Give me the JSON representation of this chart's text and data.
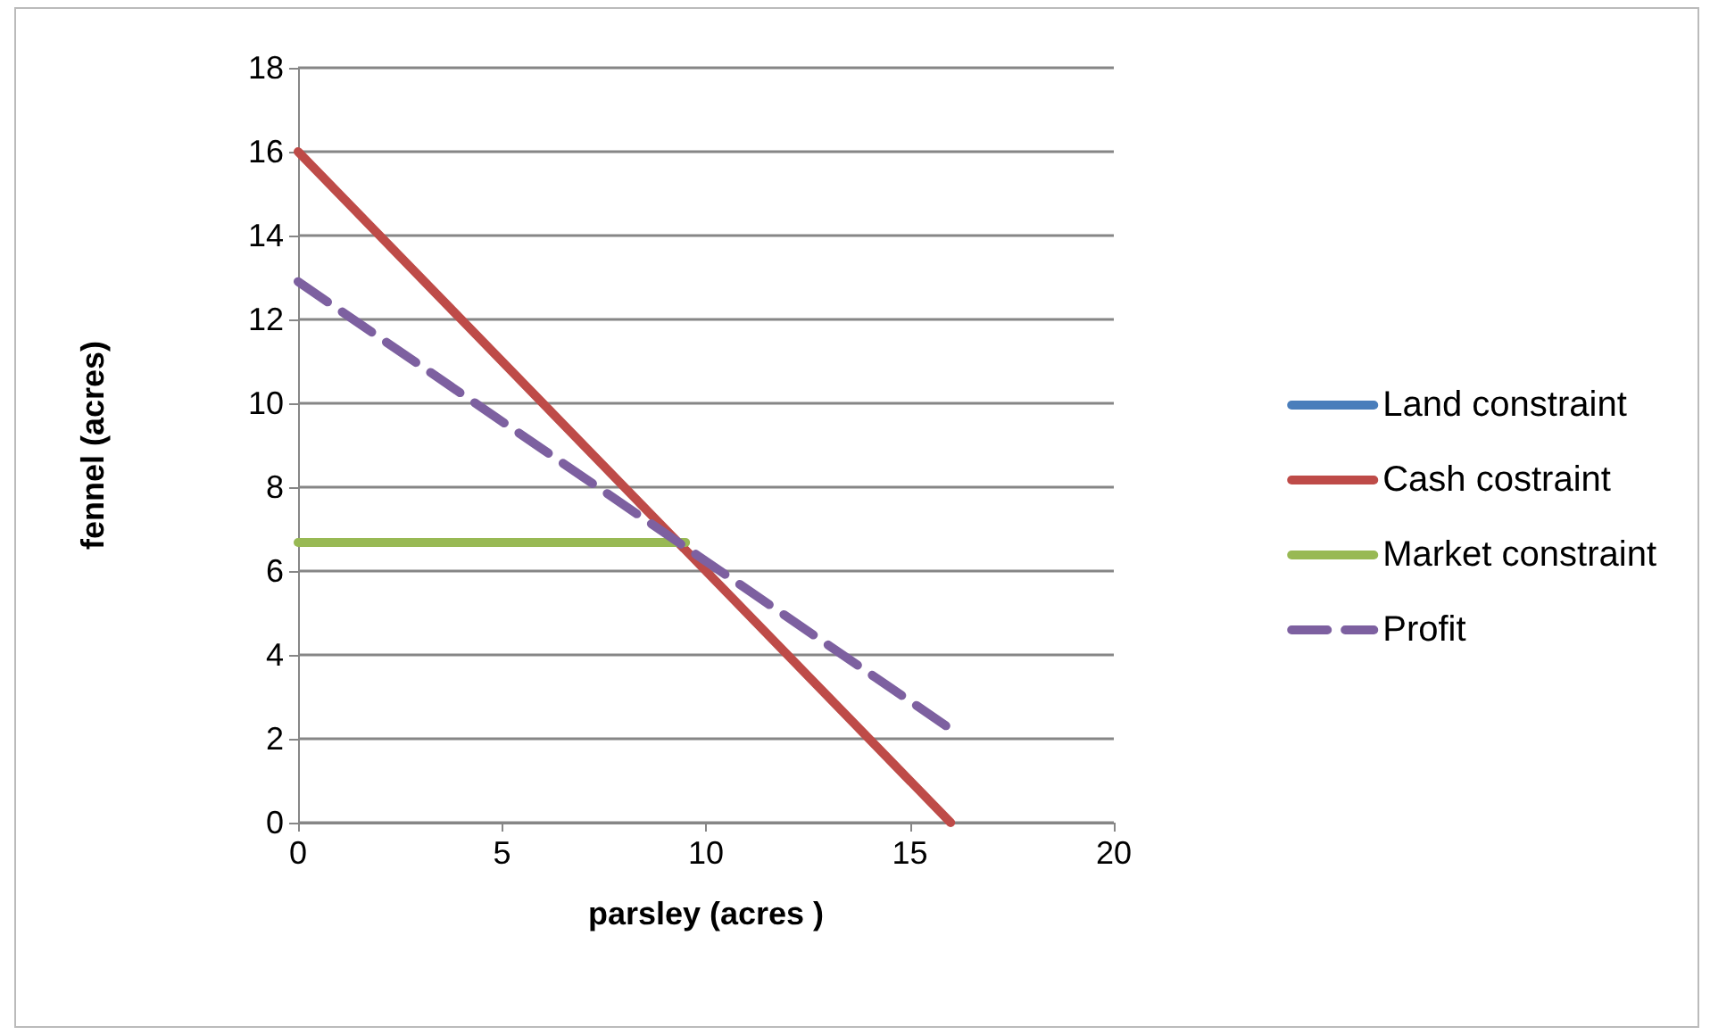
{
  "chart_data": {
    "type": "line",
    "xlabel": "parsley (acres )",
    "ylabel": "fennel (acres)",
    "xlim": [
      0,
      20
    ],
    "xticks": [
      0,
      5,
      10,
      15,
      20
    ],
    "ylim": [
      0,
      18
    ],
    "yticks": [
      0,
      2,
      4,
      6,
      8,
      10,
      12,
      14,
      16,
      18
    ],
    "grid": "y",
    "legend": "right",
    "marker": "none",
    "series": [
      {
        "name": "Land constraint",
        "color": "#4a7ebb",
        "line_style": "solid"
      },
      {
        "name": "Cash costraint",
        "color": "#be4b48",
        "x": [
          0,
          16
        ],
        "values": [
          16,
          0
        ],
        "line_style": "solid"
      },
      {
        "name": "Market constraint",
        "color": "#98b954",
        "x": [
          0,
          9.5
        ],
        "values": [
          6.68,
          6.68
        ],
        "line_style": "solid"
      },
      {
        "name": "Profit",
        "color": "#7d60a0",
        "x": [
          0,
          15.9
        ],
        "values": [
          12.9,
          2.3
        ],
        "line_style": "dashed"
      }
    ]
  }
}
